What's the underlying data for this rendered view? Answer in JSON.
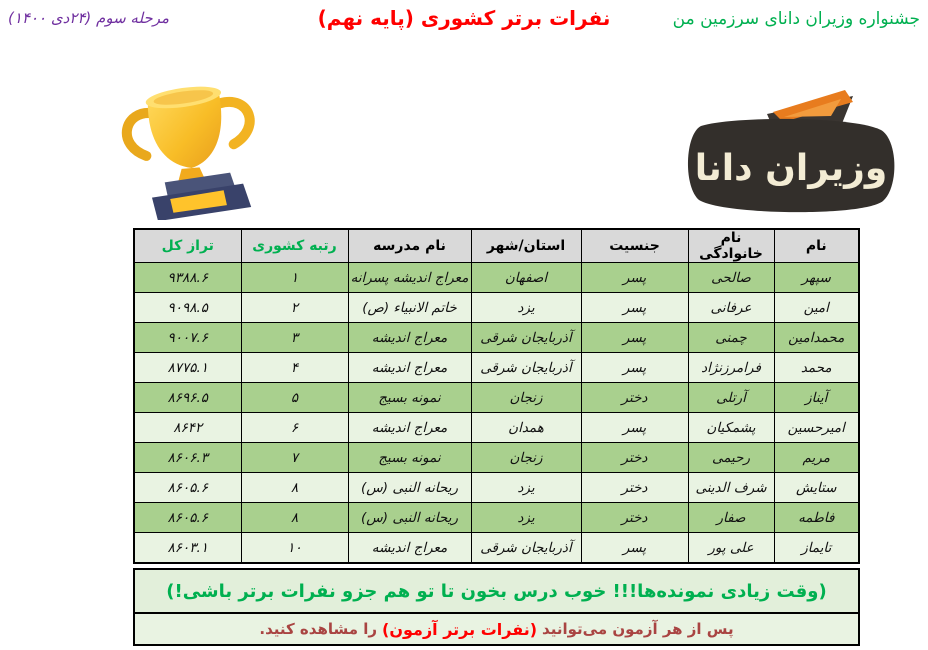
{
  "header": {
    "right_title": "جشنواره وزیران دانای سرزمین من",
    "center_title": "نفرات برتر کشوری (پایه نهم)",
    "left_title": "مرحله سوم (۲۴دی ۱۴۰۰)"
  },
  "logo": {
    "text": "وزیران دانا",
    "icon": "open-book-icon"
  },
  "icons": {
    "trophy": "trophy-icon"
  },
  "table": {
    "headers": [
      {
        "label": "نام",
        "green": false
      },
      {
        "label": "نام خانوادگی",
        "green": false
      },
      {
        "label": "جنسیت",
        "green": false
      },
      {
        "label": "استان/شهر",
        "green": false
      },
      {
        "label": "نام مدرسه",
        "green": false
      },
      {
        "label": "رتبه کشوری",
        "green": true
      },
      {
        "label": "تراز کل",
        "green": true
      }
    ],
    "rows": [
      {
        "name": "سپهر",
        "family": "صالحی",
        "gender": "پسر",
        "city": "اصفهان",
        "school": "معراج اندیشه پسرانه",
        "rank": "۱",
        "score": "۹۳۸۸.۶"
      },
      {
        "name": "امین",
        "family": "عرفانی",
        "gender": "پسر",
        "city": "یزد",
        "school": "خاتم الانبیاء (ص)",
        "rank": "۲",
        "score": "۹۰۹۸.۵"
      },
      {
        "name": "محمدامین",
        "family": "چمنی",
        "gender": "پسر",
        "city": "آذربایجان شرقی",
        "school": "معراج اندیشه",
        "rank": "۳",
        "score": "۹۰۰۷.۶"
      },
      {
        "name": "محمد",
        "family": "فرامرزنژاد",
        "gender": "پسر",
        "city": "آذربایجان شرقی",
        "school": "معراج اندیشه",
        "rank": "۴",
        "score": "۸۷۷۵.۱"
      },
      {
        "name": "آیناز",
        "family": "آرتلی",
        "gender": "دختر",
        "city": "زنجان",
        "school": "نمونه بسیج",
        "rank": "۵",
        "score": "۸۶۹۶.۵"
      },
      {
        "name": "امیرحسین",
        "family": "پشمکیان",
        "gender": "پسر",
        "city": "همدان",
        "school": "معراج اندیشه",
        "rank": "۶",
        "score": "۸۶۴۲"
      },
      {
        "name": "مریم",
        "family": "رحیمی",
        "gender": "دختر",
        "city": "زنجان",
        "school": "نمونه بسیج",
        "rank": "۷",
        "score": "۸۶۰۶.۳"
      },
      {
        "name": "ستایش",
        "family": "شرف الدینی",
        "gender": "دختر",
        "city": "یزد",
        "school": "ریحانه النبی (س)",
        "rank": "۸",
        "score": "۸۶۰۵.۶"
      },
      {
        "name": "فاطمه",
        "family": "صفار",
        "gender": "دختر",
        "city": "یزد",
        "school": "ریحانه النبی (س)",
        "rank": "۸",
        "score": "۸۶۰۵.۶"
      },
      {
        "name": "تایماز",
        "family": "علی پور",
        "gender": "پسر",
        "city": "آذربایجان شرقی",
        "school": "معراج اندیشه",
        "rank": "۱۰",
        "score": "۸۶۰۳.۱"
      }
    ]
  },
  "banner": {
    "line1": "(وقت زیادی نمونده‌ها!!! خوب درس بخون تا تو هم جزو نفرات برتر باشی!)",
    "line2_prefix": "پس از هر آزمون می‌توانید ",
    "line2_highlight": "(نفرات برتر آزمون)",
    "line2_suffix": " را مشاهده کنید."
  },
  "colors": {
    "green_accent": "#00b050",
    "red_accent": "#ff0000",
    "purple_accent": "#7030a0",
    "row_dark": "#a9d08e",
    "row_light": "#e9f3e2",
    "header_bg": "#d9d9d9",
    "banner_dark_red": "#a94442"
  }
}
